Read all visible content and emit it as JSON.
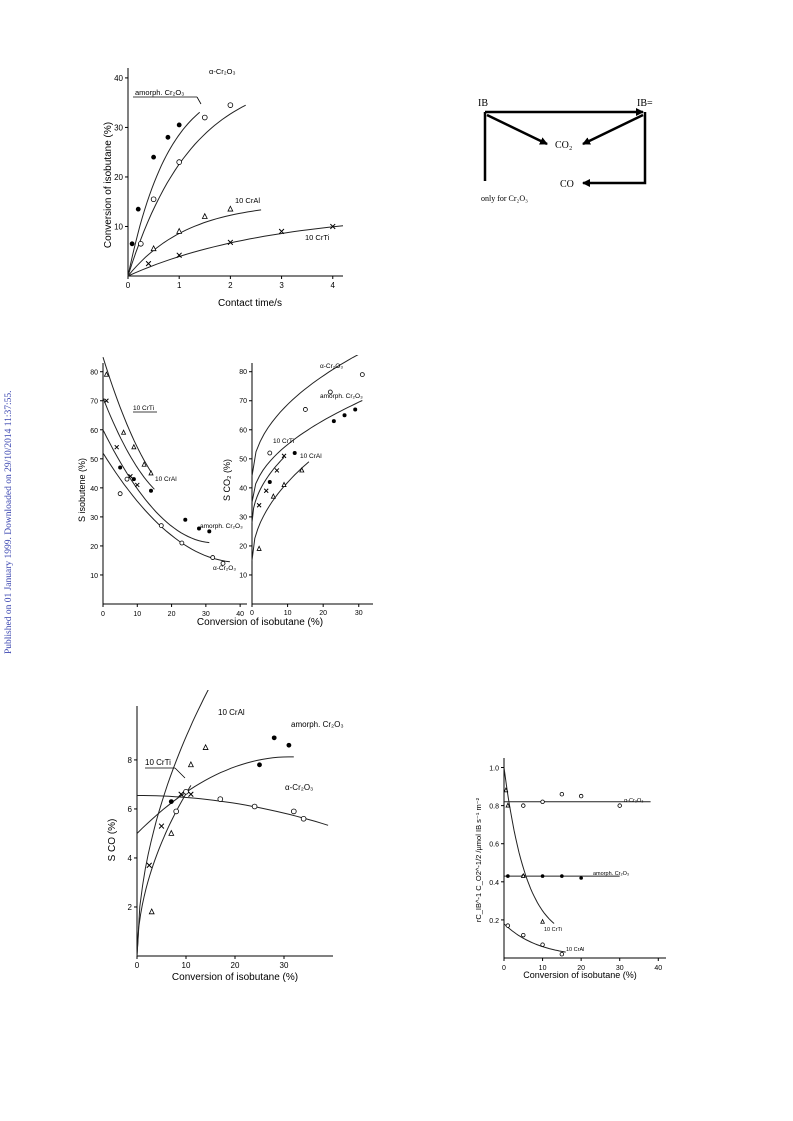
{
  "sidebar": {
    "published_text": "Published on 01 January 1999. Downloaded on 29/10/2014 11:37:55."
  },
  "figures": {
    "fig1": {
      "xlabel": "Contact time/s",
      "ylabel": "Conversion of isobutane (%)",
      "labels": {
        "amorph": "amorph. Cr₂O₃",
        "alpha": "α-Cr₂O₃",
        "crAl": "10 CrAl",
        "crTi": "10 CrTi"
      }
    },
    "scheme": {
      "ib": "IB",
      "ibene": "IB=",
      "co2": "CO₂",
      "co": "CO",
      "note": "only for Cr₂O₃"
    },
    "fig2": {
      "xlabel": "Conversion of isobutane (%)",
      "ylabel_left": "S isobutene (%)",
      "ylabel_right": "S CO₂ (%)",
      "labels_left": {
        "crTi": "10 CrTi",
        "crAl": "10 CrAl",
        "amorph": "amorph. Cr₂O₃",
        "alpha": "α-Cr₂O₃"
      },
      "labels_right": {
        "alpha": "α-Cr₂O₃",
        "amorph": "amorph. Cr₂O₃",
        "crTi": "10 CrTi",
        "crAl": "10 CrAl"
      }
    },
    "fig3": {
      "xlabel": "Conversion of isobutane (%)",
      "ylabel": "S CO (%)",
      "labels": {
        "crAl": "10 CrAl",
        "crTi": "10 CrTi",
        "amorph": "amorph. Cr₂O₃",
        "alpha": "α-Cr₂O₃"
      }
    },
    "fig4": {
      "xlabel": "Conversion of isobutane (%)",
      "ylabel": "rC_IB^-1 C_O2^-1/2 /µmol IB s⁻¹ m⁻²",
      "labels": {
        "alpha": "α-Cr₂O₃",
        "amorph": "amorph. Cr₂O₃",
        "crTi": "10 CrTi",
        "crAl": "10 CrAl"
      }
    }
  },
  "chart_data": [
    {
      "type": "scatter",
      "title": "",
      "xlabel": "Contact time/s",
      "ylabel": "Conversion of isobutane (%)",
      "xlim": [
        0,
        4.2
      ],
      "ylim": [
        0,
        42
      ],
      "xticks": [
        0,
        1,
        2,
        3,
        4
      ],
      "yticks": [
        10,
        20,
        30,
        40
      ],
      "series": [
        {
          "name": "amorph. Cr₂O₃",
          "marker": "filled-circle",
          "x": [
            0.08,
            0.2,
            0.5,
            0.78,
            1.0
          ],
          "y": [
            6.5,
            13.5,
            24,
            28,
            30.5
          ]
        },
        {
          "name": "α-Cr₂O₃",
          "marker": "open-circle",
          "x": [
            0.25,
            0.5,
            1.0,
            1.5,
            2.0
          ],
          "y": [
            6.5,
            15.5,
            23,
            32,
            34.5
          ]
        },
        {
          "name": "10 CrAl",
          "marker": "triangle",
          "x": [
            0.5,
            1.0,
            1.5,
            2.0
          ],
          "y": [
            5.5,
            9,
            12,
            13.5
          ]
        },
        {
          "name": "10 CrTi",
          "marker": "cross",
          "x": [
            0.4,
            1.0,
            2.0,
            3.0,
            4.0
          ],
          "y": [
            2.5,
            4.2,
            6.8,
            9,
            10
          ]
        }
      ]
    },
    {
      "type": "scatter",
      "title": "",
      "xlabel": "Conversion of isobutane (%)",
      "ylabel": "S isobutene (%)",
      "xlim": [
        0,
        42
      ],
      "ylim": [
        0,
        83
      ],
      "xticks": [
        0,
        10,
        20,
        30,
        40
      ],
      "yticks": [
        10,
        20,
        30,
        40,
        50,
        60,
        70,
        80
      ],
      "series": [
        {
          "name": "10 CrTi",
          "marker": "cross",
          "x": [
            1,
            4,
            8,
            10
          ],
          "y": [
            70,
            54,
            44,
            41
          ]
        },
        {
          "name": "10 CrAl",
          "marker": "triangle",
          "x": [
            1,
            6,
            9,
            12,
            14
          ],
          "y": [
            79,
            59,
            54,
            48,
            45
          ]
        },
        {
          "name": "amorph. Cr₂O₃",
          "marker": "filled-circle",
          "x": [
            5,
            9,
            14,
            24,
            28,
            31
          ],
          "y": [
            47,
            43,
            39,
            29,
            26,
            25
          ]
        },
        {
          "name": "α-Cr₂O₃",
          "marker": "open-circle",
          "x": [
            5,
            7,
            17,
            23,
            32,
            35
          ],
          "y": [
            38,
            43,
            27,
            21,
            16,
            14
          ]
        }
      ]
    },
    {
      "type": "scatter",
      "title": "",
      "xlabel": "Conversion of isobutane (%)",
      "ylabel": "S CO₂ (%)",
      "xlim": [
        0,
        34
      ],
      "ylim": [
        0,
        83
      ],
      "xticks": [
        0,
        10,
        20,
        30
      ],
      "yticks": [
        10,
        20,
        30,
        40,
        50,
        60,
        70,
        80
      ],
      "series": [
        {
          "name": "α-Cr₂O₃",
          "marker": "open-circle",
          "x": [
            5,
            15,
            22,
            31
          ],
          "y": [
            52,
            67,
            73,
            79
          ]
        },
        {
          "name": "amorph. Cr₂O₃",
          "marker": "filled-circle",
          "x": [
            5,
            12,
            23,
            26,
            29
          ],
          "y": [
            42,
            52,
            63,
            65,
            67
          ]
        },
        {
          "name": "10 CrTi",
          "marker": "cross",
          "x": [
            2,
            4,
            7,
            9
          ],
          "y": [
            34,
            39,
            46,
            51
          ]
        },
        {
          "name": "10 CrAl",
          "marker": "triangle",
          "x": [
            2,
            6,
            9,
            14
          ],
          "y": [
            19,
            37,
            41,
            46
          ]
        }
      ]
    },
    {
      "type": "scatter",
      "title": "",
      "xlabel": "Conversion of isobutane (%)",
      "ylabel": "S CO (%)",
      "xlim": [
        0,
        40
      ],
      "ylim": [
        0,
        10.2
      ],
      "xticks": [
        0,
        10,
        20,
        30
      ],
      "yticks": [
        2,
        4,
        6,
        8
      ],
      "series": [
        {
          "name": "10 CrAl",
          "marker": "triangle",
          "x": [
            3,
            7,
            11,
            14
          ],
          "y": [
            1.8,
            5,
            7.8,
            8.5
          ]
        },
        {
          "name": "10 CrTi",
          "marker": "cross",
          "x": [
            2.5,
            5,
            9,
            11
          ],
          "y": [
            3.7,
            5.3,
            6.6,
            6.6
          ]
        },
        {
          "name": "amorph. Cr₂O₃",
          "marker": "filled-circle",
          "x": [
            7,
            25,
            28,
            31
          ],
          "y": [
            6.3,
            7.8,
            8.9,
            8.6
          ]
        },
        {
          "name": "α-Cr₂O₃",
          "marker": "open-circle",
          "x": [
            8,
            10,
            17,
            24,
            32,
            34
          ],
          "y": [
            5.9,
            6.7,
            6.4,
            6.1,
            5.9,
            5.6
          ]
        }
      ]
    },
    {
      "type": "scatter",
      "title": "",
      "xlabel": "Conversion of isobutane (%)",
      "ylabel": "rC_IB^-1 C_O2^-1/2 /µmol IB s⁻¹ m⁻²",
      "xlim": [
        0,
        42
      ],
      "ylim": [
        0,
        1.05
      ],
      "xticks": [
        0,
        10,
        20,
        30,
        40
      ],
      "yticks": [
        0.2,
        0.4,
        0.6,
        0.8,
        1.0
      ],
      "series": [
        {
          "name": "α-Cr₂O₃",
          "marker": "open-circle",
          "x": [
            5,
            10,
            15,
            20,
            30
          ],
          "y": [
            0.8,
            0.82,
            0.86,
            0.85,
            0.8
          ]
        },
        {
          "name": "amorph. Cr₂O₃",
          "marker": "filled-circle",
          "x": [
            1,
            5,
            10,
            15,
            20
          ],
          "y": [
            0.43,
            0.43,
            0.43,
            0.43,
            0.42
          ]
        },
        {
          "name": "10 CrTi",
          "marker": "triangle",
          "x": [
            0.5,
            1,
            5,
            10
          ],
          "y": [
            0.88,
            0.8,
            0.43,
            0.19
          ]
        },
        {
          "name": "10 CrAl",
          "marker": "open-circle",
          "x": [
            1,
            5,
            10,
            15
          ],
          "y": [
            0.17,
            0.12,
            0.07,
            0.02
          ]
        }
      ]
    }
  ]
}
